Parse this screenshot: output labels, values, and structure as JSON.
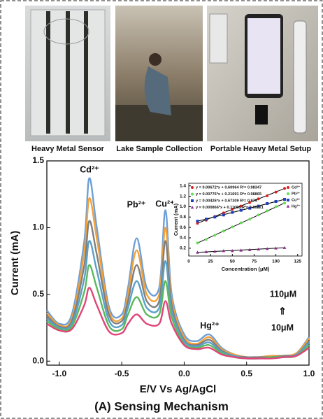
{
  "photos": {
    "captions": [
      "Heavy Metal Sensor",
      "Lake Sample Collection",
      "Portable Heavy Metal Setup"
    ]
  },
  "chart_data": [
    {
      "type": "line",
      "title": "(A) Sensing Mechanism",
      "x_label": "E/V Vs Ag/AgCl",
      "y_label": "Current (mA)",
      "x": [
        -1.1,
        -1.0,
        -0.9,
        -0.8,
        -0.76,
        -0.7,
        -0.6,
        -0.5,
        -0.45,
        -0.38,
        -0.3,
        -0.2,
        -0.15,
        -0.1,
        0.0,
        0.1,
        0.2,
        0.3,
        0.4,
        0.5,
        0.6,
        0.7,
        0.8,
        0.9,
        1.0
      ],
      "series": [
        {
          "color": "#6d9fd8",
          "values": [
            0.38,
            0.28,
            0.35,
            0.9,
            1.37,
            1.0,
            0.4,
            0.35,
            0.55,
            0.92,
            0.55,
            0.55,
            1.13,
            0.5,
            0.2,
            0.15,
            0.2,
            0.1,
            0.05,
            0.03,
            0.03,
            0.04,
            0.04,
            0.06,
            0.18
          ]
        },
        {
          "color": "#f4a23a",
          "values": [
            0.36,
            0.27,
            0.32,
            0.82,
            1.22,
            0.92,
            0.37,
            0.32,
            0.5,
            0.83,
            0.5,
            0.5,
            1.0,
            0.46,
            0.18,
            0.13,
            0.18,
            0.09,
            0.05,
            0.03,
            0.03,
            0.04,
            0.04,
            0.06,
            0.17
          ]
        },
        {
          "color": "#7f7f7f",
          "values": [
            0.34,
            0.26,
            0.3,
            0.72,
            1.05,
            0.8,
            0.34,
            0.3,
            0.45,
            0.72,
            0.45,
            0.45,
            0.9,
            0.42,
            0.16,
            0.12,
            0.16,
            0.08,
            0.04,
            0.03,
            0.03,
            0.03,
            0.04,
            0.05,
            0.15
          ]
        },
        {
          "color": "#5aa0c8",
          "values": [
            0.32,
            0.25,
            0.28,
            0.62,
            0.9,
            0.68,
            0.3,
            0.27,
            0.4,
            0.6,
            0.4,
            0.4,
            0.75,
            0.38,
            0.15,
            0.11,
            0.14,
            0.07,
            0.04,
            0.02,
            0.02,
            0.03,
            0.03,
            0.05,
            0.14
          ]
        },
        {
          "color": "#5cb85c",
          "values": [
            0.3,
            0.24,
            0.26,
            0.52,
            0.72,
            0.55,
            0.26,
            0.24,
            0.35,
            0.48,
            0.35,
            0.35,
            0.6,
            0.33,
            0.13,
            0.1,
            0.12,
            0.06,
            0.03,
            0.02,
            0.02,
            0.03,
            0.03,
            0.04,
            0.12
          ]
        },
        {
          "color": "#e0457a",
          "values": [
            0.28,
            0.23,
            0.24,
            0.42,
            0.55,
            0.42,
            0.22,
            0.21,
            0.28,
            0.35,
            0.28,
            0.28,
            0.45,
            0.28,
            0.12,
            0.09,
            0.1,
            0.05,
            0.03,
            0.02,
            0.02,
            0.02,
            0.03,
            0.04,
            0.1
          ]
        }
      ],
      "xlim": [
        -1.1,
        1.0
      ],
      "xticks": [
        {
          "value": -1.0,
          "label": "-1.0"
        },
        -0.5,
        {
          "value": 0,
          "label": "0.0"
        },
        0.5,
        {
          "value": 1.0,
          "label": "1.0"
        }
      ],
      "ylim": [
        -0.03,
        1.5
      ],
      "yticks": [
        {
          "value": 0,
          "label": "0.0"
        },
        0.5,
        {
          "value": 1.0,
          "label": "1.0"
        },
        1.5
      ],
      "annotations": [
        "Cd²⁺",
        "Pb²⁺",
        "Cu²⁺",
        "Hg²⁺",
        "110μM",
        "⇑",
        "10μM"
      ]
    },
    {
      "type": "scatter",
      "x_label": "Concentration (μM)",
      "y_label": "Current (mA)",
      "x": [
        10,
        20,
        30,
        40,
        50,
        60,
        70,
        80,
        90,
        100,
        110
      ],
      "series": [
        {
          "name": "Cd²⁺",
          "color": "#e02020",
          "marker": "circle",
          "equation": "y = 0.00672*x + 0.60964   R²= 0.98347",
          "values": [
            0.68,
            0.74,
            0.81,
            0.88,
            0.95,
            1.01,
            1.08,
            1.15,
            1.21,
            1.28,
            1.35
          ]
        },
        {
          "name": "Pb²⁺",
          "color": "#66dd55",
          "marker": "circle",
          "equation": "y = 0.00776*x + 0.21691   R²= 0.98865",
          "values": [
            0.3,
            0.37,
            0.45,
            0.53,
            0.61,
            0.69,
            0.76,
            0.84,
            0.92,
            1.0,
            1.07
          ]
        },
        {
          "name": "Cu²⁺",
          "color": "#1f3fbf",
          "marker": "square",
          "equation": "y = 0.00426*x + 0.67309   R²= 0.979",
          "values": [
            0.72,
            0.76,
            0.8,
            0.84,
            0.89,
            0.93,
            0.97,
            1.01,
            1.06,
            1.1,
            1.14
          ]
        },
        {
          "name": "Hg²⁺",
          "color": "#8a2a8a",
          "marker": "triangle",
          "equation": "y = 0.000866*x + 0.11056  R²= 0.86221",
          "values": [
            0.12,
            0.13,
            0.14,
            0.15,
            0.15,
            0.16,
            0.17,
            0.18,
            0.19,
            0.2,
            0.21
          ]
        }
      ],
      "xlim": [
        0,
        130
      ],
      "xticks": [
        0,
        25,
        50,
        75,
        100,
        125
      ],
      "ylim": [
        0.05,
        1.45
      ],
      "yticks": [
        0.2,
        0.4,
        0.6,
        0.8,
        {
          "value": 1.0,
          "label": "1.0"
        },
        1.2,
        1.4
      ]
    }
  ]
}
